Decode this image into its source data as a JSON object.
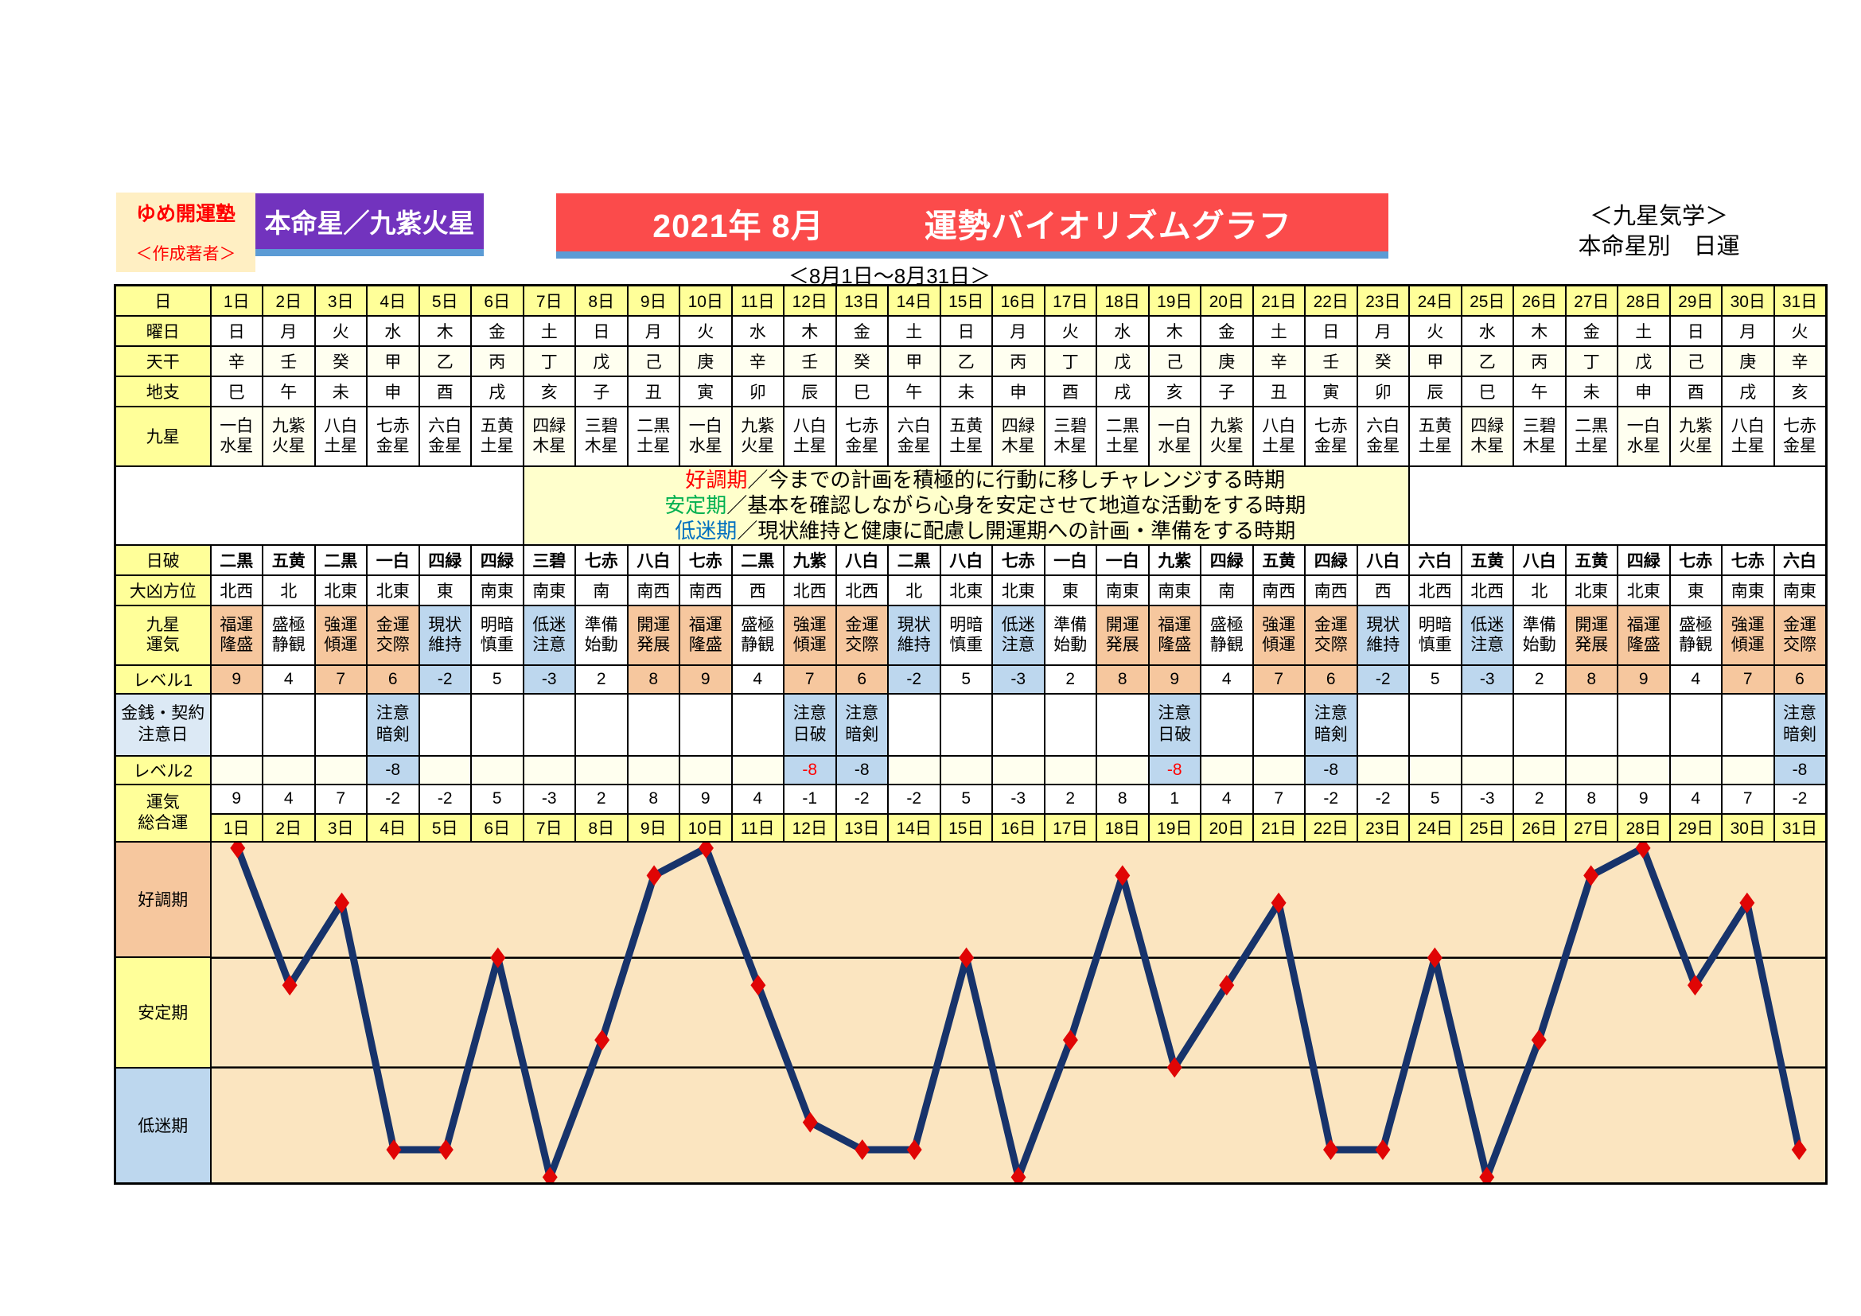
{
  "header": {
    "brand": "ゆめ開運塾",
    "brand_sub": "＜作成著者＞",
    "honmei_badge": "本命星／九紫火星",
    "title": "2021年 8月　　　運勢バイオリズムグラフ",
    "period": "＜8月1日～8月31日＞",
    "system_line1": "＜九星気学＞",
    "system_line2": "本命星別　日運"
  },
  "labels": {
    "day": "日",
    "weekday": "曜日",
    "tenkan": "天干",
    "chishi": "地支",
    "kyusei": "九星",
    "nippa": "日破",
    "daikyo": "大凶方位",
    "unki": "九星\n運気",
    "level1": "レベル1",
    "caution": "金銭・契約\n注意日",
    "level2": "レベル2",
    "total": "運気\n総合運"
  },
  "legend": [
    {
      "term": "好調期",
      "color": "#FF0000",
      "desc": "／今までの計画を積極的に行動に移しチャレンジする時期"
    },
    {
      "term": "安定期",
      "color": "#00B050",
      "desc": "／基本を確認しながら心身を安定させて地道な活動をする時期"
    },
    {
      "term": "低迷期",
      "color": "#0070C0",
      "desc": "／現状維持と健康に配慮し開運期への計画・準備をする時期"
    }
  ],
  "days": [
    "1日",
    "2日",
    "3日",
    "4日",
    "5日",
    "6日",
    "7日",
    "8日",
    "9日",
    "10日",
    "11日",
    "12日",
    "13日",
    "14日",
    "15日",
    "16日",
    "17日",
    "18日",
    "19日",
    "20日",
    "21日",
    "22日",
    "23日",
    "24日",
    "25日",
    "26日",
    "27日",
    "28日",
    "29日",
    "30日",
    "31日"
  ],
  "weekdays": [
    "日",
    "月",
    "火",
    "水",
    "木",
    "金",
    "土",
    "日",
    "月",
    "火",
    "水",
    "木",
    "金",
    "土",
    "日",
    "月",
    "火",
    "水",
    "木",
    "金",
    "土",
    "日",
    "月",
    "火",
    "水",
    "木",
    "金",
    "土",
    "日",
    "月",
    "火"
  ],
  "tenkan": [
    "辛",
    "壬",
    "癸",
    "甲",
    "乙",
    "丙",
    "丁",
    "戊",
    "己",
    "庚",
    "辛",
    "壬",
    "癸",
    "甲",
    "乙",
    "丙",
    "丁",
    "戊",
    "己",
    "庚",
    "辛",
    "壬",
    "癸",
    "甲",
    "乙",
    "丙",
    "丁",
    "戊",
    "己",
    "庚",
    "辛"
  ],
  "chishi": [
    "巳",
    "午",
    "未",
    "申",
    "酉",
    "戌",
    "亥",
    "子",
    "丑",
    "寅",
    "卯",
    "辰",
    "巳",
    "午",
    "未",
    "申",
    "酉",
    "戌",
    "亥",
    "子",
    "丑",
    "寅",
    "卯",
    "辰",
    "巳",
    "午",
    "未",
    "申",
    "酉",
    "戌",
    "亥"
  ],
  "kyusei": [
    "一白\n水星",
    "九紫\n火星",
    "八白\n土星",
    "七赤\n金星",
    "六白\n金星",
    "五黄\n土星",
    "四緑\n木星",
    "三碧\n木星",
    "二黒\n土星",
    "一白\n水星",
    "九紫\n火星",
    "八白\n土星",
    "七赤\n金星",
    "六白\n金星",
    "五黄\n土星",
    "四緑\n木星",
    "三碧\n木星",
    "二黒\n土星",
    "一白\n水星",
    "九紫\n火星",
    "八白\n土星",
    "七赤\n金星",
    "六白\n金星",
    "五黄\n土星",
    "四緑\n木星",
    "三碧\n木星",
    "二黒\n土星",
    "一白\n水星",
    "九紫\n火星",
    "八白\n土星",
    "七赤\n金星"
  ],
  "nippa": [
    "二黒",
    "五黄",
    "二黒",
    "一白",
    "四緑",
    "四緑",
    "三碧",
    "七赤",
    "八白",
    "七赤",
    "二黒",
    "九紫",
    "八白",
    "二黒",
    "八白",
    "七赤",
    "一白",
    "一白",
    "九紫",
    "四緑",
    "五黄",
    "四緑",
    "八白",
    "六白",
    "五黄",
    "八白",
    "五黄",
    "四緑",
    "七赤",
    "七赤",
    "六白"
  ],
  "daikyo": [
    "北西",
    "北",
    "北東",
    "北東",
    "東",
    "南東",
    "南東",
    "南",
    "南西",
    "南西",
    "西",
    "北西",
    "北西",
    "北",
    "北東",
    "北東",
    "東",
    "南東",
    "南東",
    "南",
    "南西",
    "南西",
    "西",
    "北西",
    "北西",
    "北",
    "北東",
    "北東",
    "東",
    "南東",
    "南東"
  ],
  "unki": [
    "福運\n隆盛",
    "盛極\n静観",
    "強運\n傾運",
    "金運\n交際",
    "現状\n維持",
    "明暗\n慎重",
    "低迷\n注意",
    "準備\n始動",
    "開運\n発展",
    "福運\n隆盛",
    "盛極\n静観",
    "強運\n傾運",
    "金運\n交際",
    "現状\n維持",
    "明暗\n慎重",
    "低迷\n注意",
    "準備\n始動",
    "開運\n発展",
    "福運\n隆盛",
    "盛極\n静観",
    "強運\n傾運",
    "金運\n交際",
    "現状\n維持",
    "明暗\n慎重",
    "低迷\n注意",
    "準備\n始動",
    "開運\n発展",
    "福運\n隆盛",
    "盛極\n静観",
    "強運\n傾運",
    "金運\n交際"
  ],
  "unki_tone": [
    "o",
    "w",
    "o",
    "o",
    "b",
    "w",
    "b",
    "w",
    "o",
    "o",
    "w",
    "o",
    "o",
    "b",
    "w",
    "b",
    "w",
    "o",
    "o",
    "w",
    "o",
    "o",
    "b",
    "w",
    "b",
    "w",
    "o",
    "o",
    "w",
    "o",
    "o"
  ],
  "level1": [
    9,
    4,
    7,
    6,
    -2,
    5,
    -3,
    2,
    8,
    9,
    4,
    7,
    6,
    -2,
    5,
    -3,
    2,
    8,
    9,
    4,
    7,
    6,
    -2,
    5,
    -3,
    2,
    8,
    9,
    4,
    7,
    6
  ],
  "caution_notes": [
    null,
    null,
    null,
    {
      "text": "注意\n暗剣",
      "type": "anken"
    },
    null,
    null,
    null,
    null,
    null,
    null,
    null,
    {
      "text": "注意\n日破",
      "type": "nippa"
    },
    {
      "text": "注意\n暗剣",
      "type": "anken"
    },
    null,
    null,
    null,
    null,
    null,
    {
      "text": "注意\n日破",
      "type": "nippa"
    },
    null,
    null,
    {
      "text": "注意\n暗剣",
      "type": "anken"
    },
    null,
    null,
    null,
    null,
    null,
    null,
    null,
    null,
    {
      "text": "注意\n暗剣",
      "type": "anken"
    }
  ],
  "level2": [
    null,
    null,
    null,
    -8,
    null,
    null,
    null,
    null,
    null,
    null,
    null,
    -8,
    -8,
    null,
    null,
    null,
    null,
    null,
    -8,
    null,
    null,
    -8,
    null,
    null,
    null,
    null,
    null,
    null,
    null,
    null,
    -8
  ],
  "total": [
    9,
    4,
    7,
    -2,
    -2,
    5,
    -3,
    2,
    8,
    9,
    4,
    -1,
    -2,
    -2,
    5,
    -3,
    2,
    8,
    1,
    4,
    7,
    -2,
    -2,
    5,
    -3,
    2,
    8,
    9,
    4,
    7,
    -2
  ],
  "bands": [
    {
      "label": "好調期",
      "bg": "#F6C79E"
    },
    {
      "label": "安定期",
      "bg": "#FFFF99"
    },
    {
      "label": "低迷期",
      "bg": "#BDD7EE"
    }
  ],
  "colors": {
    "tone_o": "#F6C79E",
    "tone_w": "#FFFFFF",
    "tone_b": "#BDD7EE",
    "label_yellow": "#FFFF99",
    "banner_red": "#FB4B4B",
    "banner_purple": "#7233BE",
    "underline_blue": "#5B9BD5",
    "plot_bg": "#FBE5C0",
    "line_navy": "#17336B",
    "marker_red": "#E00505",
    "red_text": "#FF0000"
  },
  "chart_data": {
    "type": "line",
    "title": "2021年8月 運勢バイオリズムグラフ（九紫火星・日運 総合運）",
    "x_labels": [
      "1日",
      "2日",
      "3日",
      "4日",
      "5日",
      "6日",
      "7日",
      "8日",
      "9日",
      "10日",
      "11日",
      "12日",
      "13日",
      "14日",
      "15日",
      "16日",
      "17日",
      "18日",
      "19日",
      "20日",
      "21日",
      "22日",
      "23日",
      "24日",
      "25日",
      "26日",
      "27日",
      "28日",
      "29日",
      "30日",
      "31日"
    ],
    "series": [
      {
        "name": "運気総合運",
        "values": [
          9,
          4,
          7,
          -2,
          -2,
          5,
          -3,
          2,
          8,
          9,
          4,
          -1,
          -2,
          -2,
          5,
          -3,
          2,
          8,
          1,
          4,
          7,
          -2,
          -2,
          5,
          -3,
          2,
          8,
          9,
          4,
          7,
          -2
        ]
      }
    ],
    "ylim": [
      -3.2,
      9.2
    ],
    "band_boundaries": [
      5,
      1
    ],
    "bands": [
      "好調期 (>5)",
      "安定期 (1〜5)",
      "低迷期 (<1)"
    ],
    "grid": false,
    "legend_position": "none",
    "line_color": "#17336B",
    "marker": "diamond",
    "marker_color": "#E00505"
  }
}
